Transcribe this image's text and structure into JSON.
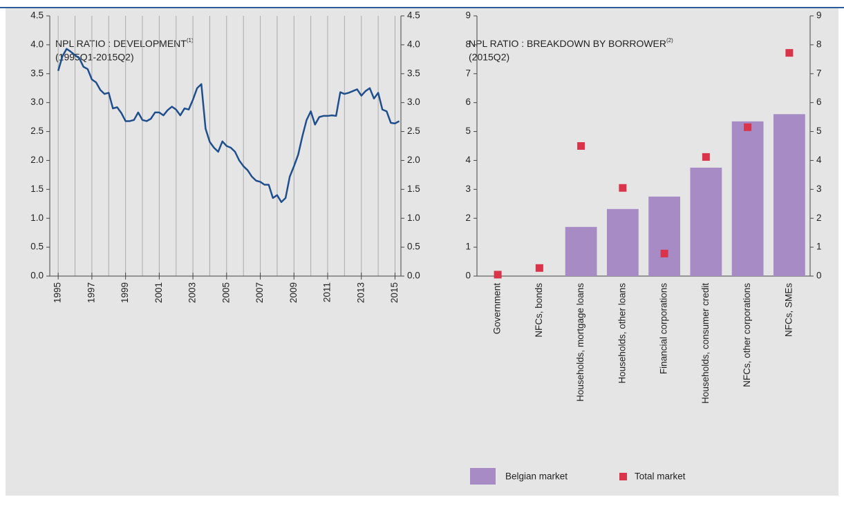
{
  "chart_data": [
    {
      "type": "line",
      "title": "NPL RATIO : DEVELOPMENT",
      "title_note": "(1)",
      "subtitle": "(1995Q1-2015Q2)",
      "x": [
        1995,
        1995.25,
        1995.5,
        1995.75,
        1996,
        1996.25,
        1996.5,
        1996.75,
        1997,
        1997.25,
        1997.5,
        1997.75,
        1998,
        1998.25,
        1998.5,
        1998.75,
        1999,
        1999.25,
        1999.5,
        1999.75,
        2000,
        2000.25,
        2000.5,
        2000.75,
        2001,
        2001.25,
        2001.5,
        2001.75,
        2002,
        2002.25,
        2002.5,
        2002.75,
        2003,
        2003.25,
        2003.5,
        2003.75,
        2004,
        2004.25,
        2004.5,
        2004.75,
        2005,
        2005.25,
        2005.5,
        2005.75,
        2006,
        2006.25,
        2006.5,
        2006.75,
        2007,
        2007.25,
        2007.5,
        2007.75,
        2008,
        2008.25,
        2008.5,
        2008.75,
        2009,
        2009.25,
        2009.5,
        2009.75,
        2010,
        2010.25,
        2010.5,
        2010.75,
        2011,
        2011.25,
        2011.5,
        2011.75,
        2012,
        2012.25,
        2012.5,
        2012.75,
        2013,
        2013.25,
        2013.5,
        2013.75,
        2014,
        2014.25,
        2014.5,
        2014.75,
        2015,
        2015.25
      ],
      "series": [
        {
          "color": "#1f4e8c",
          "values": [
            3.55,
            3.8,
            3.93,
            3.88,
            3.82,
            3.77,
            3.62,
            3.58,
            3.4,
            3.35,
            3.22,
            3.15,
            3.17,
            2.9,
            2.92,
            2.82,
            2.68,
            2.68,
            2.7,
            2.83,
            2.7,
            2.68,
            2.72,
            2.83,
            2.83,
            2.78,
            2.87,
            2.93,
            2.88,
            2.78,
            2.9,
            2.88,
            3.05,
            3.25,
            3.32,
            2.55,
            2.32,
            2.22,
            2.15,
            2.33,
            2.25,
            2.22,
            2.15,
            2.0,
            1.9,
            1.83,
            1.72,
            1.65,
            1.63,
            1.58,
            1.58,
            1.35,
            1.4,
            1.28,
            1.35,
            1.72,
            1.9,
            2.1,
            2.42,
            2.7,
            2.85,
            2.62,
            2.75,
            2.77,
            2.77,
            2.78,
            2.77,
            3.18,
            3.15,
            3.17,
            3.2,
            3.23,
            3.12,
            3.2,
            3.25,
            3.07,
            3.17,
            2.88,
            2.85,
            2.65,
            2.64,
            2.68
          ]
        }
      ],
      "xlim": [
        1994.5,
        2015.35
      ],
      "xticks": [
        1995,
        1997,
        1999,
        2001,
        2003,
        2005,
        2007,
        2009,
        2011,
        2013,
        2015
      ],
      "xminor": [
        1996,
        1998,
        2000,
        2002,
        2004,
        2006,
        2008,
        2010,
        2012,
        2014
      ],
      "ylim": [
        0,
        4.5
      ],
      "yticks": [
        {
          "value": 0,
          "label": "0.0"
        },
        {
          "value": 0.5,
          "label": "0.5"
        },
        {
          "value": 1,
          "label": "1.0"
        },
        {
          "value": 1.5,
          "label": "1.5"
        },
        {
          "value": 2,
          "label": "2.0"
        },
        {
          "value": 2.5,
          "label": "2.5"
        },
        {
          "value": 3,
          "label": "3.0"
        },
        {
          "value": 3.5,
          "label": "3.5"
        },
        {
          "value": 4,
          "label": "4.0"
        },
        {
          "value": 4.5,
          "label": "4.5"
        }
      ],
      "grid": true
    },
    {
      "type": "bar",
      "title": "NPL RATIO : BREAKDOWN BY BORROWER",
      "title_note": "(2)",
      "subtitle": "(2015Q2)",
      "categories": [
        "Government",
        "NFCs, bonds",
        "Households, mortgage loans",
        "Households, other loans",
        "Financial corporations",
        "Households, consumer credit",
        "NFCs, other corporations",
        "NFCs, SMEs"
      ],
      "series": [
        {
          "name": "Belgian market",
          "color": "#a68bc4",
          "values": [
            0,
            0,
            1.7,
            2.32,
            2.75,
            3.75,
            5.35,
            5.6
          ]
        },
        {
          "name": "Total market",
          "color": "#d9344a",
          "marker": "square",
          "values": [
            0.05,
            0.28,
            4.5,
            3.05,
            0.78,
            4.12,
            5.15,
            7.72
          ]
        }
      ],
      "ylim": [
        0,
        9
      ],
      "yticks": [
        0,
        1,
        2,
        3,
        4,
        5,
        6,
        7,
        8,
        9
      ],
      "legend": "bottom"
    }
  ]
}
